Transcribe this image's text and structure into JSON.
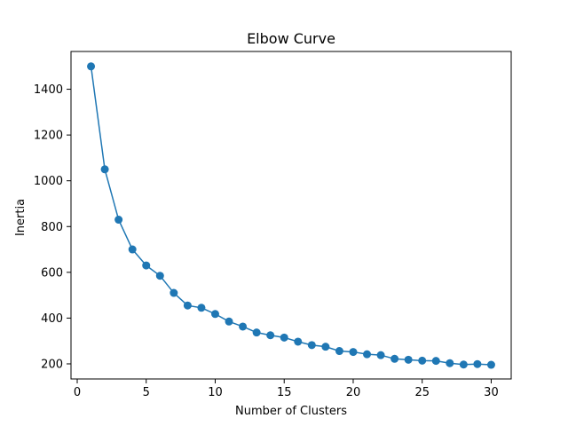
{
  "chart_data": {
    "type": "line",
    "title": "Elbow Curve",
    "xlabel": "Number of Clusters",
    "ylabel": "Inertia",
    "xlim": [
      -0.45,
      31.45
    ],
    "ylim": [
      134,
      1565
    ],
    "xticks": [
      0,
      5,
      10,
      15,
      20,
      25,
      30
    ],
    "yticks": [
      200,
      400,
      600,
      800,
      1000,
      1200,
      1400
    ],
    "grid": false,
    "marker": "circle",
    "series": [
      {
        "color": "#1f77b4",
        "x": [
          1,
          2,
          3,
          4,
          5,
          6,
          7,
          8,
          9,
          10,
          11,
          12,
          13,
          14,
          15,
          16,
          17,
          18,
          19,
          20,
          21,
          22,
          23,
          24,
          25,
          26,
          27,
          28,
          29,
          30
        ],
        "y": [
          1500,
          1050,
          830,
          700,
          630,
          585,
          510,
          455,
          445,
          418,
          385,
          363,
          337,
          325,
          315,
          297,
          282,
          275,
          256,
          252,
          242,
          238,
          222,
          218,
          214,
          213,
          203,
          197,
          199,
          196
        ]
      }
    ]
  }
}
